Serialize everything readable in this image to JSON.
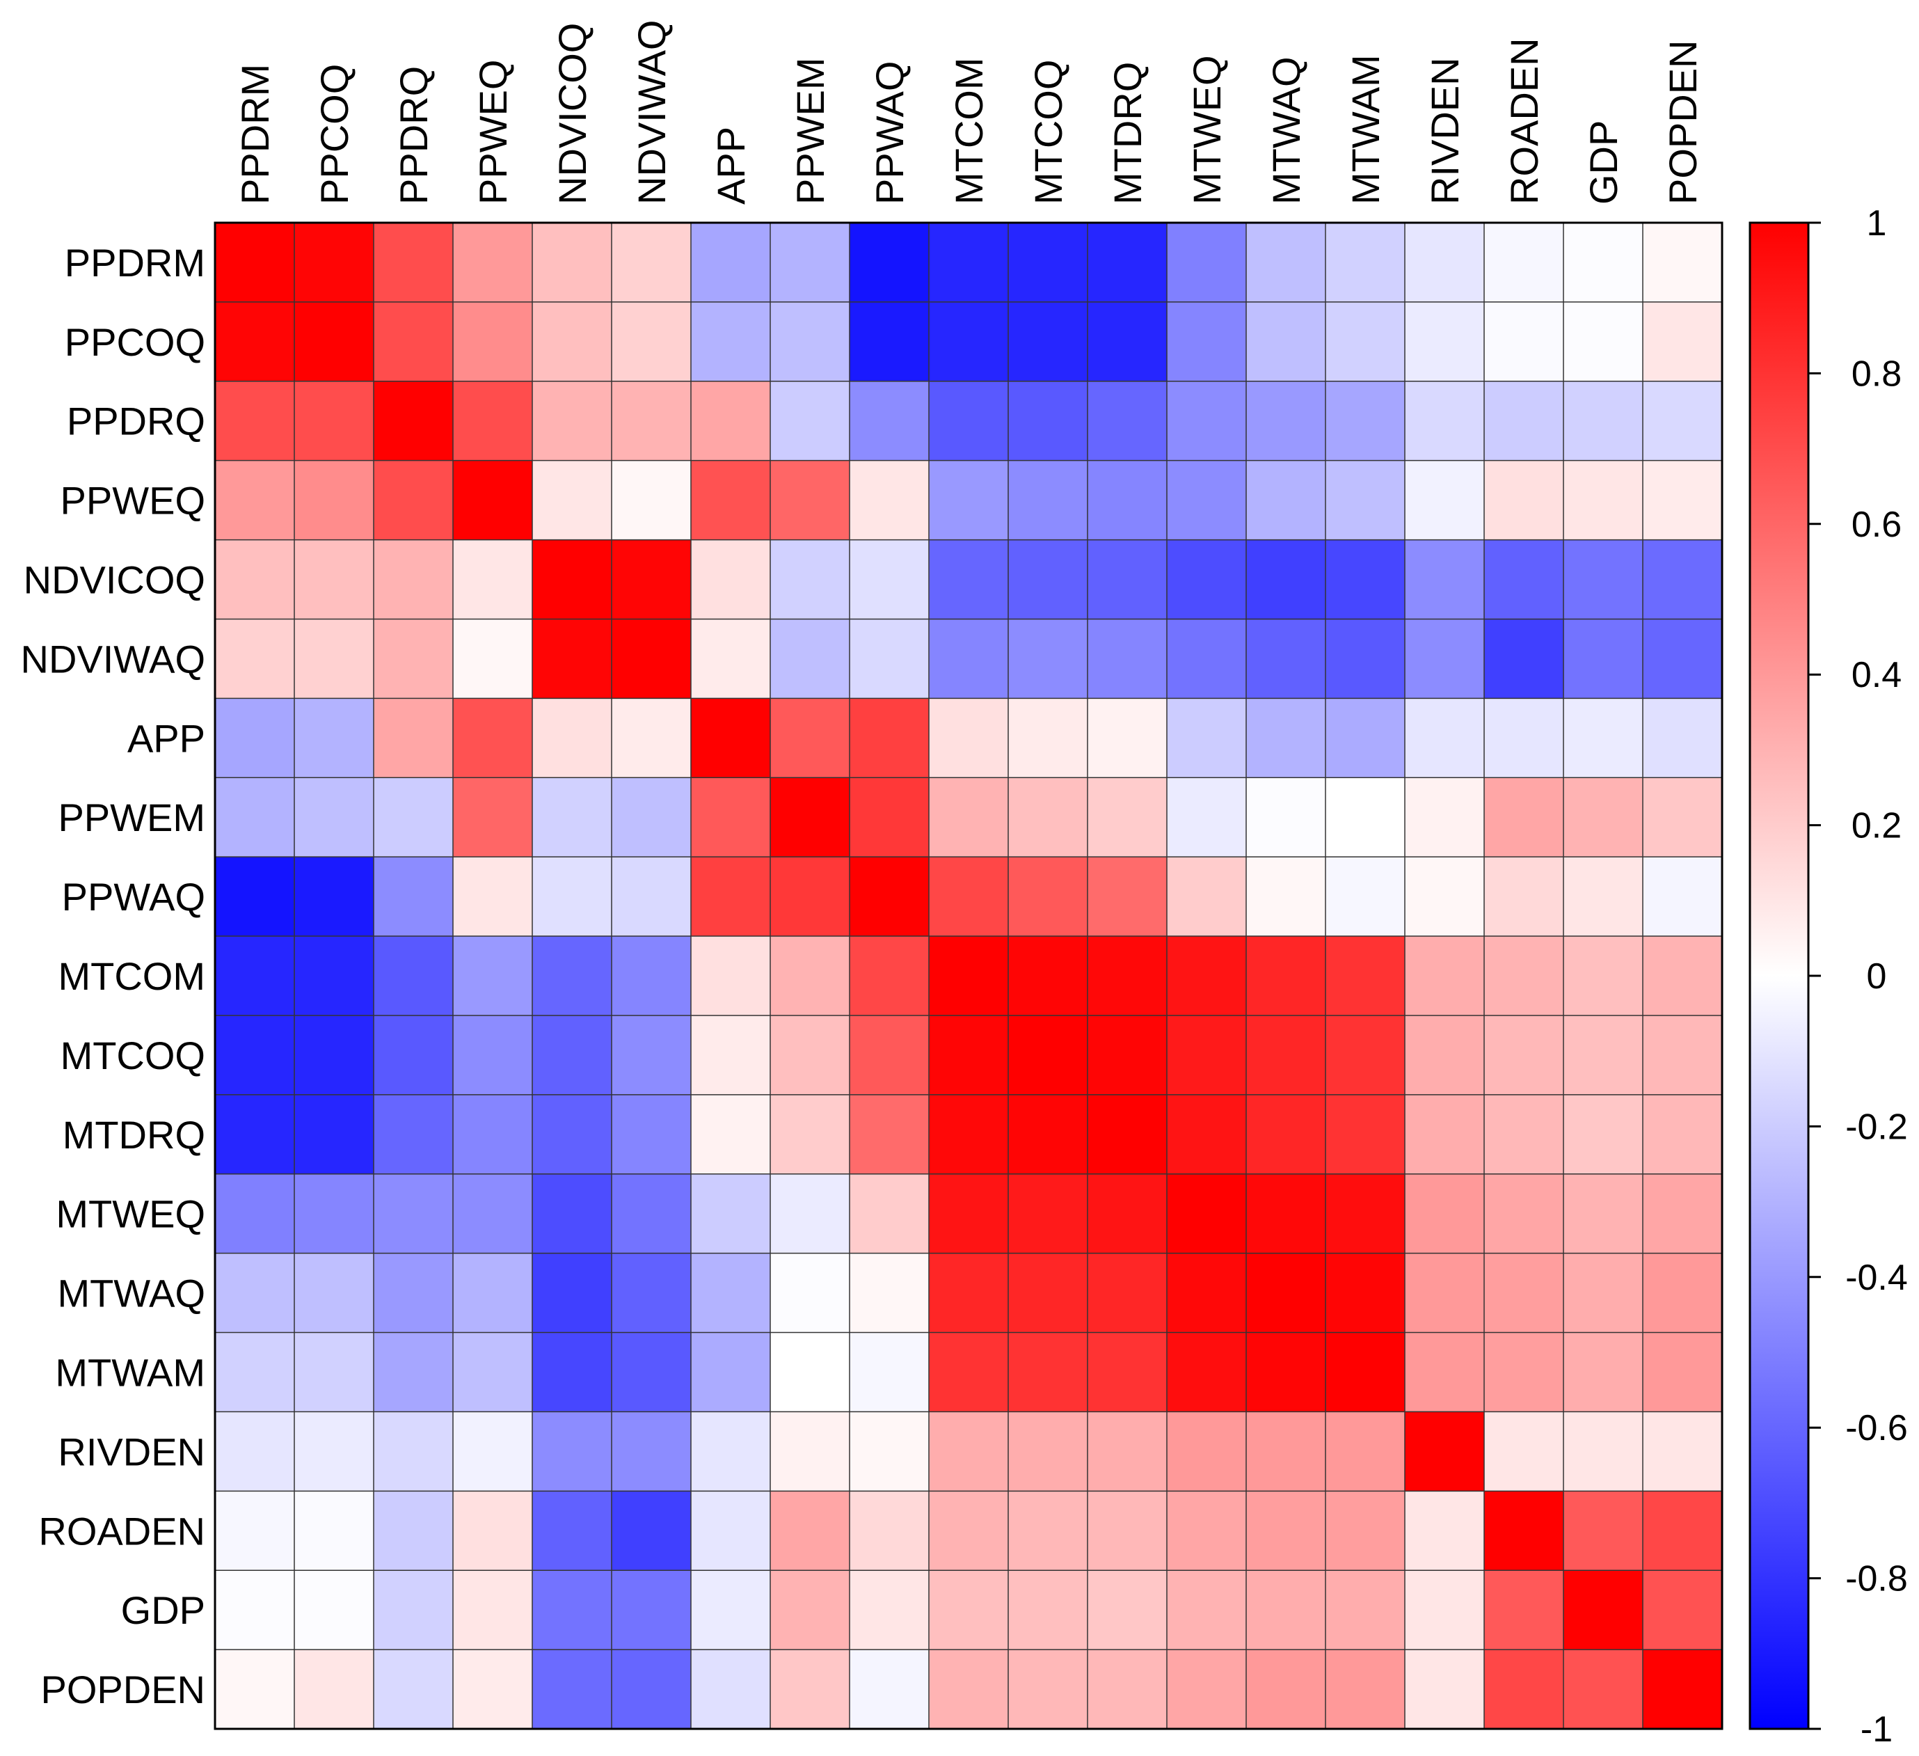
{
  "chart_data": {
    "type": "heatmap",
    "title": "",
    "variables": [
      "PPDRM",
      "PPCOQ",
      "PPDRQ",
      "PPWEQ",
      "NDVICOQ",
      "NDVIWAQ",
      "APP",
      "PPWEM",
      "PPWAQ",
      "MTCOM",
      "MTCOQ",
      "MTDRQ",
      "MTWEQ",
      "MTWAQ",
      "MTWAM",
      "RIVDEN",
      "ROADEN",
      "GDP",
      "POPDEN"
    ],
    "matrix": [
      [
        1.0,
        0.98,
        0.7,
        0.4,
        0.25,
        0.18,
        -0.35,
        -0.3,
        -0.92,
        -0.85,
        -0.85,
        -0.85,
        -0.5,
        -0.25,
        -0.18,
        -0.1,
        -0.03,
        -0.01,
        0.03
      ],
      [
        0.98,
        1.0,
        0.7,
        0.45,
        0.25,
        0.18,
        -0.3,
        -0.25,
        -0.9,
        -0.85,
        -0.85,
        -0.85,
        -0.48,
        -0.25,
        -0.18,
        -0.08,
        -0.02,
        -0.01,
        0.1
      ],
      [
        0.7,
        0.7,
        1.0,
        0.7,
        0.3,
        0.3,
        0.35,
        -0.2,
        -0.45,
        -0.65,
        -0.65,
        -0.6,
        -0.45,
        -0.4,
        -0.35,
        -0.15,
        -0.2,
        -0.18,
        -0.15
      ],
      [
        0.4,
        0.45,
        0.7,
        1.0,
        0.1,
        0.03,
        0.68,
        0.6,
        0.1,
        -0.4,
        -0.45,
        -0.48,
        -0.45,
        -0.3,
        -0.25,
        -0.05,
        0.12,
        0.1,
        0.08
      ],
      [
        0.25,
        0.25,
        0.3,
        0.1,
        1.0,
        0.98,
        0.12,
        -0.18,
        -0.12,
        -0.6,
        -0.62,
        -0.62,
        -0.7,
        -0.75,
        -0.72,
        -0.45,
        -0.62,
        -0.55,
        -0.58
      ],
      [
        0.18,
        0.18,
        0.3,
        0.03,
        0.98,
        1.0,
        0.08,
        -0.25,
        -0.15,
        -0.48,
        -0.45,
        -0.48,
        -0.55,
        -0.62,
        -0.65,
        -0.45,
        -0.75,
        -0.55,
        -0.6
      ],
      [
        -0.35,
        -0.3,
        0.35,
        0.68,
        0.12,
        0.08,
        1.0,
        0.65,
        0.75,
        0.12,
        0.08,
        0.05,
        -0.2,
        -0.3,
        -0.33,
        -0.1,
        -0.1,
        -0.08,
        -0.12
      ],
      [
        -0.3,
        -0.25,
        -0.2,
        0.6,
        -0.18,
        -0.25,
        0.65,
        1.0,
        0.78,
        0.3,
        0.25,
        0.2,
        -0.08,
        -0.01,
        0.0,
        0.05,
        0.35,
        0.3,
        0.22
      ],
      [
        -0.92,
        -0.9,
        -0.45,
        0.1,
        -0.12,
        -0.15,
        0.75,
        0.78,
        1.0,
        0.72,
        0.65,
        0.58,
        0.2,
        0.03,
        -0.03,
        0.03,
        0.15,
        0.1,
        -0.04
      ],
      [
        -0.85,
        -0.85,
        -0.65,
        -0.4,
        -0.6,
        -0.48,
        0.12,
        0.3,
        0.72,
        1.0,
        0.98,
        0.97,
        0.92,
        0.85,
        0.8,
        0.32,
        0.3,
        0.25,
        0.3
      ],
      [
        -0.85,
        -0.85,
        -0.65,
        -0.45,
        -0.62,
        -0.45,
        0.08,
        0.25,
        0.65,
        0.98,
        1.0,
        0.98,
        0.9,
        0.85,
        0.8,
        0.32,
        0.28,
        0.25,
        0.28
      ],
      [
        -0.85,
        -0.85,
        -0.6,
        -0.48,
        -0.62,
        -0.48,
        0.05,
        0.2,
        0.58,
        0.97,
        0.98,
        1.0,
        0.92,
        0.85,
        0.8,
        0.32,
        0.28,
        0.22,
        0.28
      ],
      [
        -0.5,
        -0.48,
        -0.45,
        -0.45,
        -0.7,
        -0.55,
        -0.2,
        -0.08,
        0.2,
        0.92,
        0.9,
        0.92,
        1.0,
        0.97,
        0.95,
        0.4,
        0.35,
        0.3,
        0.35
      ],
      [
        -0.25,
        -0.25,
        -0.4,
        -0.3,
        -0.75,
        -0.62,
        -0.3,
        -0.01,
        0.03,
        0.85,
        0.85,
        0.85,
        0.97,
        1.0,
        0.98,
        0.4,
        0.38,
        0.32,
        0.4
      ],
      [
        -0.18,
        -0.18,
        -0.35,
        -0.25,
        -0.72,
        -0.65,
        -0.33,
        0.0,
        -0.03,
        0.8,
        0.8,
        0.8,
        0.95,
        0.98,
        1.0,
        0.4,
        0.38,
        0.32,
        0.4
      ],
      [
        -0.1,
        -0.08,
        -0.15,
        -0.05,
        -0.45,
        -0.45,
        -0.1,
        0.05,
        0.03,
        0.32,
        0.32,
        0.32,
        0.4,
        0.4,
        0.4,
        1.0,
        0.1,
        0.1,
        0.1
      ],
      [
        -0.03,
        -0.02,
        -0.2,
        0.12,
        -0.62,
        -0.75,
        -0.1,
        0.35,
        0.15,
        0.3,
        0.28,
        0.28,
        0.35,
        0.38,
        0.38,
        0.1,
        1.0,
        0.65,
        0.72
      ],
      [
        -0.01,
        -0.01,
        -0.18,
        0.1,
        -0.55,
        -0.55,
        -0.08,
        0.3,
        0.1,
        0.25,
        0.25,
        0.22,
        0.3,
        0.32,
        0.32,
        0.1,
        0.65,
        1.0,
        0.68
      ],
      [
        0.03,
        0.1,
        -0.15,
        0.08,
        -0.58,
        -0.6,
        -0.12,
        0.22,
        -0.04,
        0.3,
        0.28,
        0.28,
        0.35,
        0.4,
        0.4,
        0.1,
        0.72,
        0.68,
        1.0
      ]
    ],
    "colorbar": {
      "range": [
        -1,
        1
      ],
      "ticks": [
        "1",
        "0.8",
        "0.6",
        "0.4",
        "0.2",
        "0",
        "-0.2",
        "-0.4",
        "-0.6",
        "-0.8",
        "-1"
      ],
      "colors": {
        "low": "#0000ff",
        "mid": "#ffffff",
        "high": "#ff0000"
      }
    }
  }
}
